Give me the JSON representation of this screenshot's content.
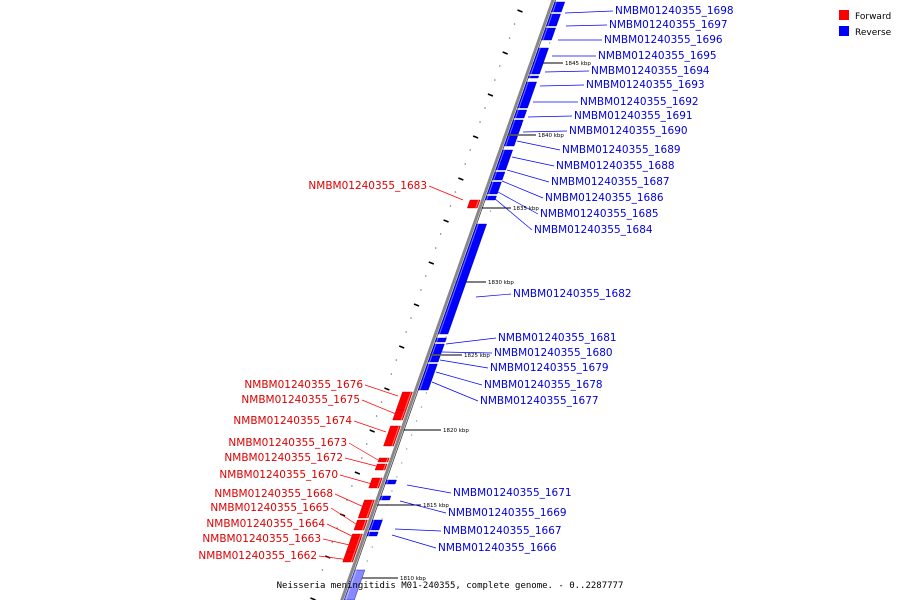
{
  "colors": {
    "forward": "#ff0000",
    "forward_label": "#dd0000",
    "reverse": "#0000ff",
    "reverse_label": "#0000dd",
    "backbone": "#888888"
  },
  "legend": {
    "forward_label": "Forward",
    "reverse_label": "Reverse"
  },
  "caption": "Neisseria meningitidis M01-240355, complete genome. - 0..2287777",
  "kbp_ticks": [
    "1845 kbp",
    "1840 kbp",
    "1835 kbp",
    "1830 kbp",
    "1825 kbp",
    "1820 kbp",
    "1815 kbp",
    "1810 kbp"
  ],
  "reverse_genes": [
    "NMBM01240355_1698",
    "NMBM01240355_1697",
    "NMBM01240355_1696",
    "NMBM01240355_1695",
    "NMBM01240355_1694",
    "NMBM01240355_1693",
    "NMBM01240355_1692",
    "NMBM01240355_1691",
    "NMBM01240355_1690",
    "NMBM01240355_1689",
    "NMBM01240355_1688",
    "NMBM01240355_1687",
    "NMBM01240355_1686",
    "NMBM01240355_1685",
    "NMBM01240355_1684",
    "NMBM01240355_1682",
    "NMBM01240355_1681",
    "NMBM01240355_1680",
    "NMBM01240355_1679",
    "NMBM01240355_1678",
    "NMBM01240355_1677",
    "NMBM01240355_1671",
    "NMBM01240355_1669",
    "NMBM01240355_1667",
    "NMBM01240355_1666"
  ],
  "forward_genes": [
    "NMBM01240355_1683",
    "NMBM01240355_1676",
    "NMBM01240355_1675",
    "NMBM01240355_1674",
    "NMBM01240355_1673",
    "NMBM01240355_1672",
    "NMBM01240355_1670",
    "NMBM01240355_1668",
    "NMBM01240355_1665",
    "NMBM01240355_1664",
    "NMBM01240355_1663",
    "NMBM01240355_1662"
  ]
}
